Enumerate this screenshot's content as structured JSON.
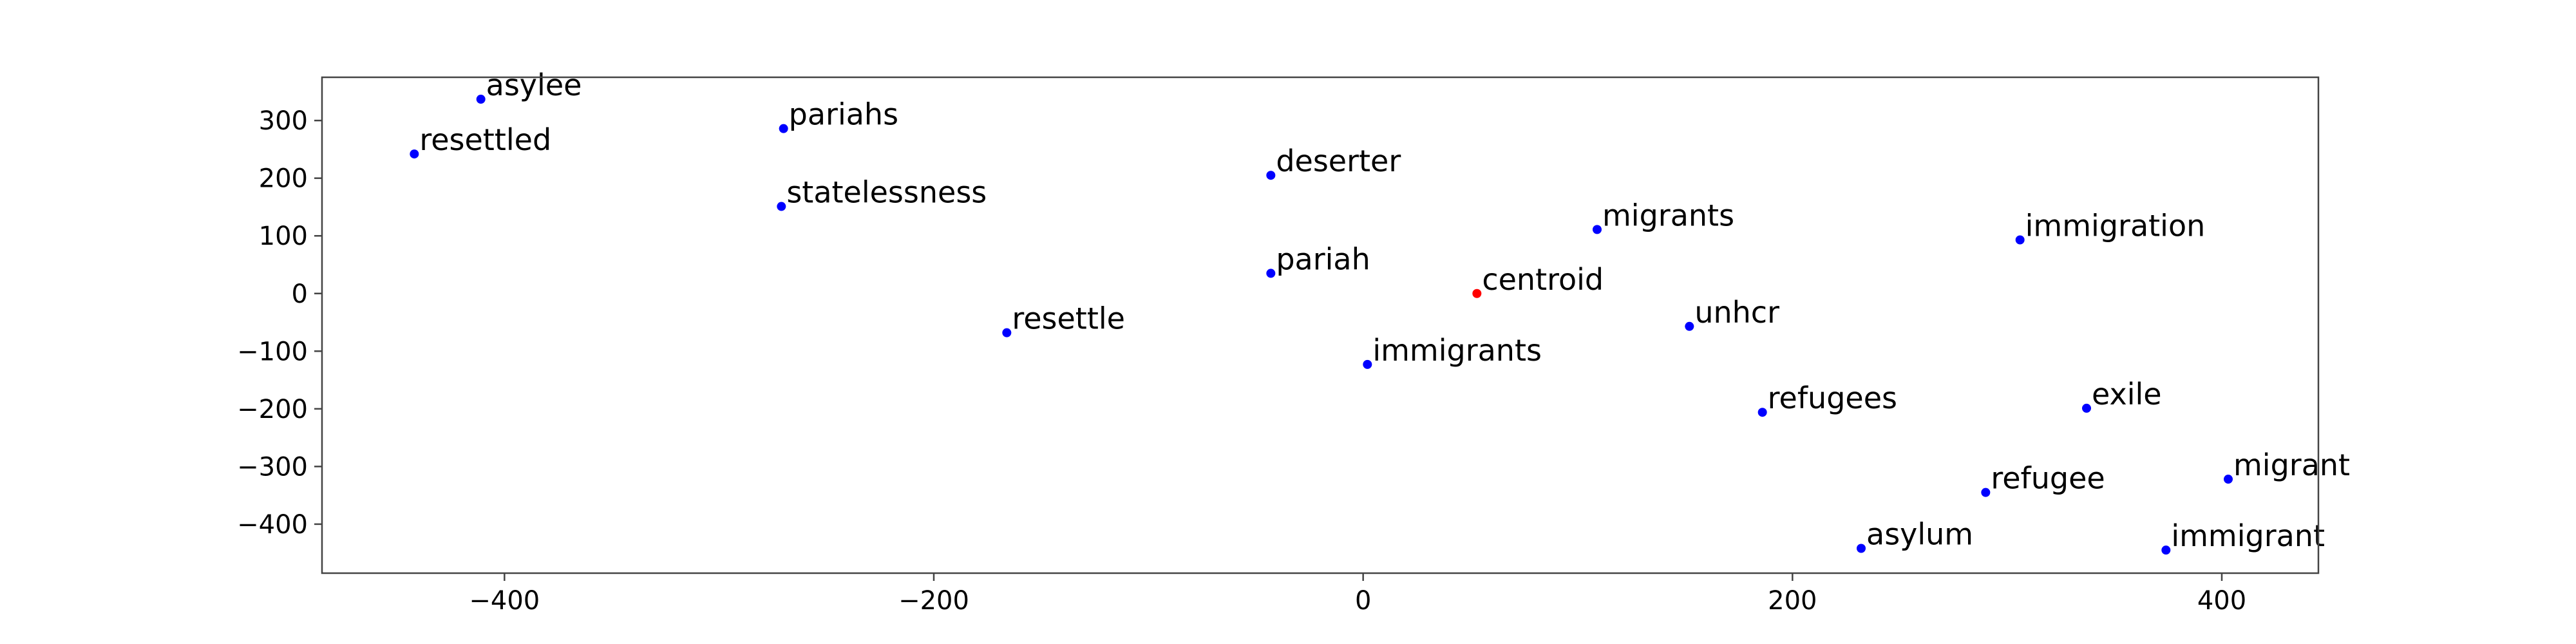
{
  "chart_data": {
    "type": "scatter",
    "title": "",
    "xlabel": "",
    "ylabel": "",
    "xlim": [
      -485,
      445
    ],
    "ylim": [
      -485,
      375
    ],
    "grid": false,
    "xticks": [
      -400,
      -200,
      0,
      200,
      400
    ],
    "yticks": [
      300,
      200,
      100,
      0,
      -100,
      -200,
      -300,
      -400
    ],
    "tick_labels_x": [
      "−400",
      "−200",
      "0",
      "200",
      "400"
    ],
    "tick_labels_y": [
      "300",
      "200",
      "100",
      "0",
      "−100",
      "−200",
      "−300",
      "−400"
    ],
    "point_color": "#0000ff",
    "centroid_color": "#ff0000",
    "points": [
      {
        "label": "asylee",
        "x": -411,
        "y": 337,
        "kind": "word"
      },
      {
        "label": "resettled",
        "x": -442,
        "y": 242,
        "kind": "word"
      },
      {
        "label": "pariahs",
        "x": -270,
        "y": 286,
        "kind": "word"
      },
      {
        "label": "statelessness",
        "x": -271,
        "y": 151,
        "kind": "word"
      },
      {
        "label": "deserter",
        "x": -43,
        "y": 205,
        "kind": "word"
      },
      {
        "label": "pariah",
        "x": -43,
        "y": 35,
        "kind": "word"
      },
      {
        "label": "resettle",
        "x": -166,
        "y": -68,
        "kind": "word"
      },
      {
        "label": "immigrants",
        "x": 2,
        "y": -123,
        "kind": "word"
      },
      {
        "label": "centroid",
        "x": 53,
        "y": 0,
        "kind": "centroid"
      },
      {
        "label": "migrants",
        "x": 109,
        "y": 111,
        "kind": "word"
      },
      {
        "label": "unhcr",
        "x": 152,
        "y": -57,
        "kind": "word"
      },
      {
        "label": "immigration",
        "x": 306,
        "y": 93,
        "kind": "word"
      },
      {
        "label": "refugees",
        "x": 186,
        "y": -206,
        "kind": "word"
      },
      {
        "label": "exile",
        "x": 337,
        "y": -199,
        "kind": "word"
      },
      {
        "label": "refugee",
        "x": 290,
        "y": -345,
        "kind": "word"
      },
      {
        "label": "migrant",
        "x": 403,
        "y": -322,
        "kind": "word"
      },
      {
        "label": "asylum",
        "x": 232,
        "y": -442,
        "kind": "word"
      },
      {
        "label": "immigrant",
        "x": 374,
        "y": -445,
        "kind": "word"
      }
    ]
  }
}
